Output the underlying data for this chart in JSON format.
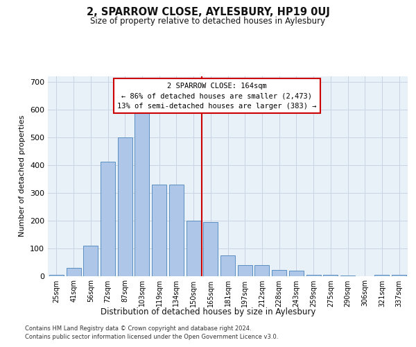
{
  "title": "2, SPARROW CLOSE, AYLESBURY, HP19 0UJ",
  "subtitle": "Size of property relative to detached houses in Aylesbury",
  "xlabel": "Distribution of detached houses by size in Aylesbury",
  "ylabel": "Number of detached properties",
  "categories": [
    "25sqm",
    "41sqm",
    "56sqm",
    "72sqm",
    "87sqm",
    "103sqm",
    "119sqm",
    "134sqm",
    "150sqm",
    "165sqm",
    "181sqm",
    "197sqm",
    "212sqm",
    "228sqm",
    "243sqm",
    "259sqm",
    "275sqm",
    "290sqm",
    "306sqm",
    "321sqm",
    "337sqm"
  ],
  "bar_heights": [
    5,
    28,
    108,
    413,
    500,
    592,
    330,
    330,
    200,
    195,
    75,
    38,
    38,
    22,
    20,
    5,
    5,
    2,
    0,
    3,
    3
  ],
  "bar_color": "#aec6e8",
  "bar_edge_color": "#5a8fc2",
  "vline_position": 8.5,
  "property_line_label": "2 SPARROW CLOSE: 164sqm",
  "annotation_line1": "← 86% of detached houses are smaller (2,473)",
  "annotation_line2": "13% of semi-detached houses are larger (383) →",
  "vline_color": "#cc0000",
  "annotation_box_facecolor": "#ffffff",
  "annotation_box_edgecolor": "#cc0000",
  "ylim": [
    0,
    720
  ],
  "yticks": [
    0,
    100,
    200,
    300,
    400,
    500,
    600,
    700
  ],
  "grid_color": "#c8d4e4",
  "background_color": "#e8f0f8",
  "footer_line1": "Contains HM Land Registry data © Crown copyright and database right 2024.",
  "footer_line2": "Contains public sector information licensed under the Open Government Licence v3.0."
}
